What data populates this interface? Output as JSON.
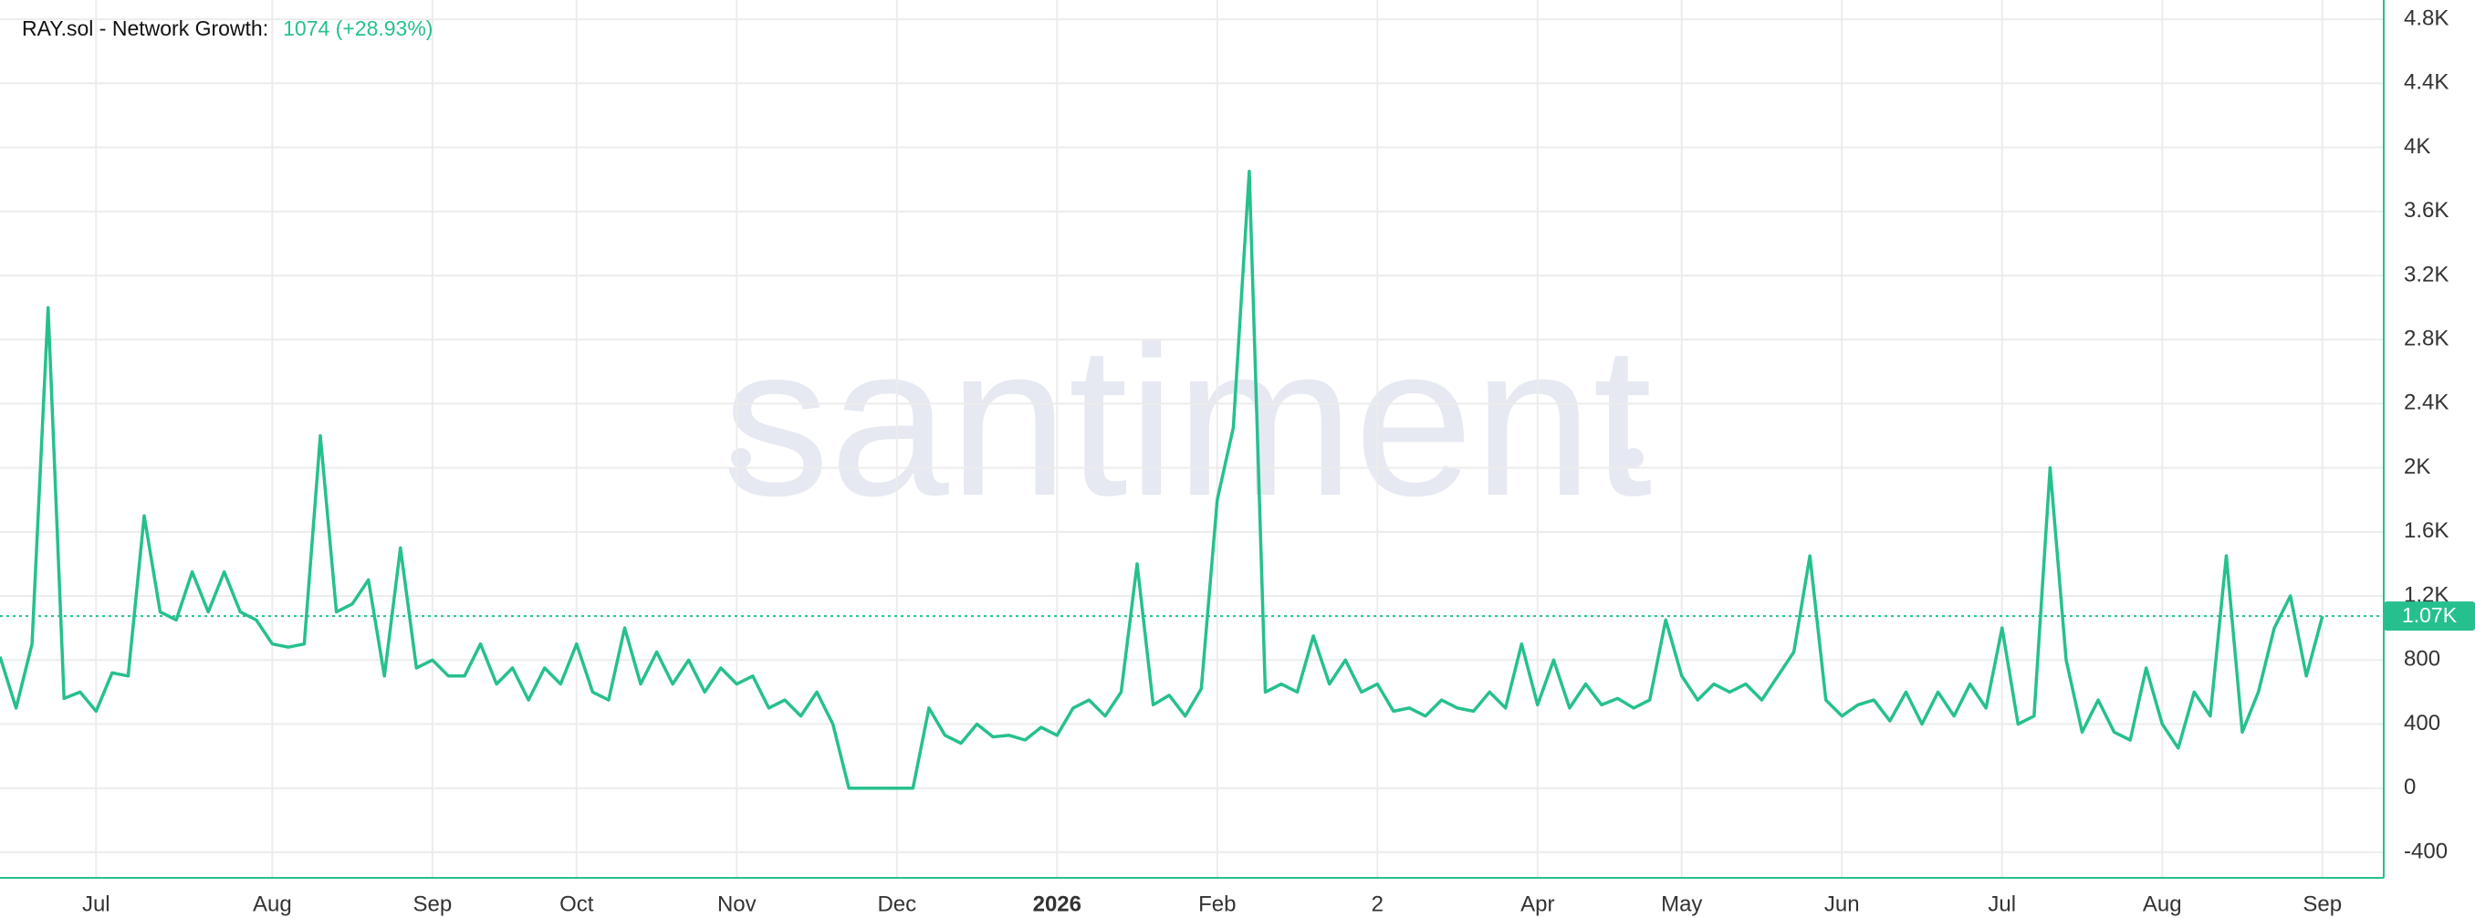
{
  "chart_data": {
    "type": "line",
    "watermark": "santiment",
    "legend_value": "1074 (+28.93%)",
    "categories": [
      null,
      null,
      null,
      null,
      null,
      null,
      "Jul",
      null,
      null,
      null,
      null,
      null,
      null,
      null,
      null,
      null,
      null,
      "Aug",
      null,
      null,
      null,
      null,
      null,
      null,
      null,
      null,
      null,
      "Sep",
      null,
      null,
      null,
      null,
      null,
      null,
      null,
      null,
      "Oct",
      null,
      null,
      null,
      null,
      null,
      null,
      null,
      null,
      null,
      "Nov",
      null,
      null,
      null,
      null,
      null,
      null,
      null,
      null,
      null,
      "Dec",
      null,
      null,
      null,
      null,
      null,
      null,
      null,
      null,
      null,
      "2026",
      null,
      null,
      null,
      null,
      null,
      null,
      null,
      null,
      null,
      "Feb",
      null,
      null,
      null,
      null,
      null,
      null,
      null,
      null,
      null,
      "2",
      null,
      null,
      null,
      null,
      null,
      null,
      null,
      null,
      null,
      "Apr",
      null,
      null,
      null,
      null,
      null,
      null,
      null,
      null,
      "May",
      null,
      null,
      null,
      null,
      null,
      null,
      null,
      null,
      null,
      "Jun",
      null,
      null,
      null,
      null,
      null,
      null,
      null,
      null,
      null,
      "Jul",
      null,
      null,
      null,
      null,
      null,
      null,
      null,
      null,
      null,
      "Aug",
      null,
      null,
      null,
      null,
      null,
      null,
      null,
      null,
      null,
      "Sep"
    ],
    "series": [
      {
        "name": "RAY.sol - Network Growth:",
        "color": "#26c08f",
        "values": [
          820,
          500,
          900,
          3000,
          560,
          600,
          480,
          720,
          700,
          1700,
          1100,
          1050,
          1350,
          1100,
          1350,
          1100,
          1050,
          900,
          880,
          900,
          2200,
          1100,
          1150,
          1300,
          700,
          1500,
          750,
          800,
          700,
          700,
          900,
          650,
          750,
          550,
          750,
          650,
          900,
          600,
          550,
          1000,
          650,
          850,
          650,
          800,
          600,
          750,
          650,
          700,
          500,
          550,
          450,
          600,
          400,
          0,
          0,
          0,
          0,
          0,
          500,
          330,
          280,
          400,
          320,
          330,
          300,
          380,
          330,
          500,
          550,
          450,
          600,
          1400,
          520,
          580,
          450,
          620,
          1800,
          2250,
          3850,
          600,
          650,
          600,
          950,
          650,
          800,
          600,
          650,
          480,
          500,
          450,
          550,
          500,
          480,
          600,
          500,
          900,
          520,
          800,
          500,
          650,
          520,
          560,
          500,
          550,
          1050,
          700,
          550,
          650,
          600,
          650,
          550,
          700,
          850,
          1450,
          550,
          450,
          520,
          550,
          420,
          600,
          400,
          600,
          450,
          650,
          500,
          1000,
          400,
          450,
          2000,
          800,
          350,
          550,
          350,
          300,
          750,
          400,
          250,
          600,
          450,
          1450,
          350,
          600,
          1000,
          1200,
          700,
          1074
        ]
      }
    ],
    "reference_line": {
      "value": 1074,
      "label": "1.07K"
    },
    "ylim": [
      -560,
      4920
    ],
    "yticks": [
      -400,
      0,
      400,
      800,
      {
        "value": 1200,
        "label": "1.2K"
      },
      {
        "value": 1600,
        "label": "1.6K"
      },
      {
        "value": 2000,
        "label": "2K"
      },
      {
        "value": 2400,
        "label": "2.4K"
      },
      {
        "value": 2800,
        "label": "2.8K"
      },
      {
        "value": 3200,
        "label": "3.2K"
      },
      {
        "value": 3600,
        "label": "3.6K"
      },
      {
        "value": 4000,
        "label": "4K"
      },
      {
        "value": 4400,
        "label": "4.4K"
      },
      {
        "value": 4800,
        "label": "4.8K"
      }
    ],
    "grid": true
  }
}
